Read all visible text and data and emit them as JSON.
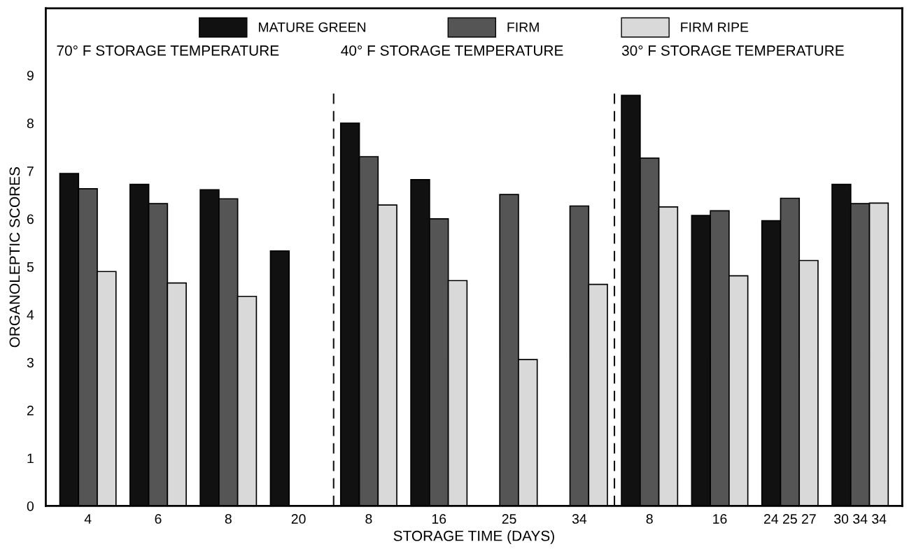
{
  "chart_data": {
    "type": "bar",
    "xlabel": "STORAGE TIME (DAYS)",
    "ylabel": "ORGANOLEPTIC SCORES",
    "categories": [
      "4",
      "6",
      "8",
      "20",
      "8",
      "16",
      "25",
      "34",
      "8",
      "16",
      "24 25 27",
      "30 34 34"
    ],
    "series": [
      {
        "name": "MATURE GREEN",
        "color": "#111111",
        "values": [
          6.95,
          6.72,
          6.61,
          5.33,
          8.0,
          6.82,
          null,
          null,
          8.58,
          6.07,
          5.96,
          6.72
        ]
      },
      {
        "name": "FIRM",
        "color": "#555555",
        "values": [
          6.63,
          6.32,
          6.42,
          null,
          7.3,
          6.0,
          6.51,
          6.27,
          7.27,
          6.17,
          6.43,
          6.32
        ]
      },
      {
        "name": "FIRM RIPE",
        "color": "#d9d9d9",
        "values": [
          4.9,
          4.66,
          4.38,
          null,
          6.29,
          4.71,
          3.06,
          4.63,
          6.25,
          4.81,
          5.13,
          6.33
        ]
      }
    ],
    "annotations": [
      "70° F STORAGE TEMPERATURE",
      "40° F STORAGE TEMPERATURE",
      "30° F STORAGE TEMPERATURE"
    ],
    "ylim": [
      0,
      10.4
    ],
    "yticks": [
      0,
      1,
      2,
      3,
      4,
      5,
      6,
      7,
      8,
      9
    ],
    "grid": false,
    "legend": "top"
  }
}
